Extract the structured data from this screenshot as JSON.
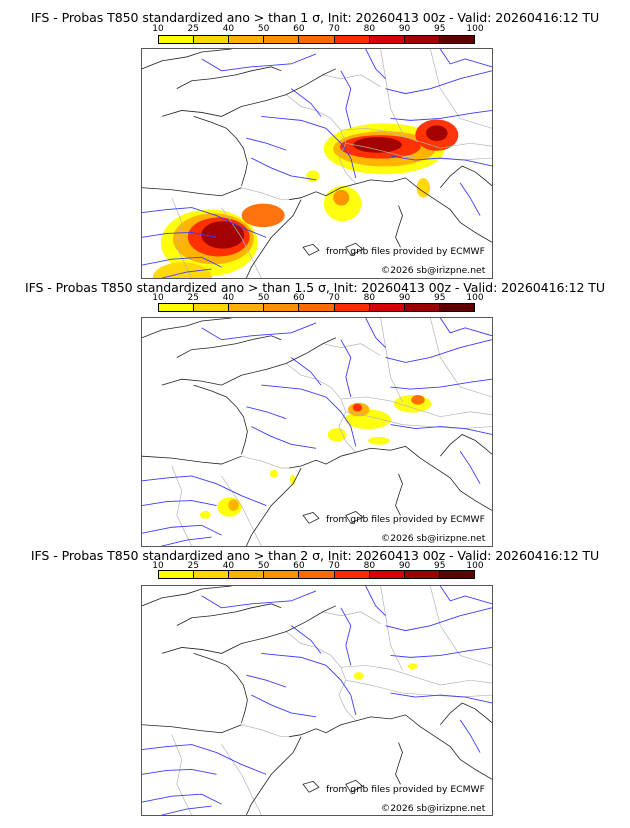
{
  "figure": {
    "credit_source": "from grib files provided by ECMWF",
    "credit_copyright": "©2026 sb@irizpne.net"
  },
  "colorbar": {
    "ticks": [
      "10",
      "25",
      "40",
      "50",
      "60",
      "70",
      "80",
      "90",
      "95",
      "100"
    ],
    "colors": [
      "#ffff00",
      "#ffd700",
      "#ffb000",
      "#ff9000",
      "#ff6a00",
      "#ff2a00",
      "#d80000",
      "#9e0000",
      "#5e0000"
    ]
  },
  "panels": [
    {
      "title": "IFS - Probas T850  standardized ano > than 1 σ, Init: 20260413 00z - Valid: 20260416:12 TU",
      "threshold_sigma": 1,
      "prob_areas": [
        {
          "lon": -4.5,
          "lat": 40.6,
          "rx": 3.6,
          "ry": 1.7,
          "p": 15
        },
        {
          "lon": -4.2,
          "lat": 40.8,
          "rx": 3.0,
          "ry": 1.3,
          "p": 40
        },
        {
          "lon": -3.8,
          "lat": 40.9,
          "rx": 2.3,
          "ry": 1.0,
          "p": 70
        },
        {
          "lon": -3.5,
          "lat": 41.0,
          "rx": 1.6,
          "ry": 0.7,
          "p": 92
        },
        {
          "lon": -0.5,
          "lat": 42.0,
          "rx": 1.6,
          "ry": 0.6,
          "p": 60
        },
        {
          "lon": -6.5,
          "lat": 38.8,
          "rx": 2.2,
          "ry": 0.8,
          "p": 25
        },
        {
          "lon": 5.4,
          "lat": 42.6,
          "rx": 1.4,
          "ry": 0.9,
          "p": 20
        },
        {
          "lon": 5.3,
          "lat": 42.9,
          "rx": 0.6,
          "ry": 0.4,
          "p": 55
        },
        {
          "lon": 8.5,
          "lat": 45.4,
          "rx": 4.5,
          "ry": 1.3,
          "p": 15
        },
        {
          "lon": 8.5,
          "lat": 45.4,
          "rx": 3.8,
          "ry": 0.9,
          "p": 45
        },
        {
          "lon": 8.2,
          "lat": 45.5,
          "rx": 3.0,
          "ry": 0.6,
          "p": 75
        },
        {
          "lon": 8.0,
          "lat": 45.6,
          "rx": 1.8,
          "ry": 0.4,
          "p": 93
        },
        {
          "lon": 12.4,
          "lat": 46.1,
          "rx": 1.6,
          "ry": 0.8,
          "p": 75
        },
        {
          "lon": 12.4,
          "lat": 46.2,
          "rx": 0.8,
          "ry": 0.4,
          "p": 93
        },
        {
          "lon": 11.4,
          "lat": 43.4,
          "rx": 0.5,
          "ry": 0.5,
          "p": 30
        },
        {
          "lon": 3.2,
          "lat": 44.0,
          "rx": 0.5,
          "ry": 0.3,
          "p": 15
        }
      ]
    },
    {
      "title": "IFS - Probas T850  standardized ano > than 1.5 σ, Init: 20260413 00z - Valid: 20260416:12 TU",
      "threshold_sigma": 1.5,
      "prob_areas": [
        {
          "lon": 7.3,
          "lat": 45.3,
          "rx": 1.7,
          "ry": 0.5,
          "p": 15
        },
        {
          "lon": 6.6,
          "lat": 45.8,
          "rx": 0.8,
          "ry": 0.35,
          "p": 45
        },
        {
          "lon": 6.5,
          "lat": 45.9,
          "rx": 0.35,
          "ry": 0.2,
          "p": 75
        },
        {
          "lon": 10.6,
          "lat": 46.1,
          "rx": 1.4,
          "ry": 0.45,
          "p": 20
        },
        {
          "lon": 11.0,
          "lat": 46.3,
          "rx": 0.5,
          "ry": 0.25,
          "p": 65
        },
        {
          "lon": 5.0,
          "lat": 44.5,
          "rx": 0.7,
          "ry": 0.35,
          "p": 15
        },
        {
          "lon": 8.1,
          "lat": 44.2,
          "rx": 0.8,
          "ry": 0.2,
          "p": 15
        },
        {
          "lon": -3.0,
          "lat": 40.8,
          "rx": 0.9,
          "ry": 0.5,
          "p": 15
        },
        {
          "lon": -2.7,
          "lat": 40.9,
          "rx": 0.4,
          "ry": 0.3,
          "p": 40
        },
        {
          "lon": -4.8,
          "lat": 40.4,
          "rx": 0.4,
          "ry": 0.2,
          "p": 20
        },
        {
          "lon": 0.3,
          "lat": 42.5,
          "rx": 0.3,
          "ry": 0.2,
          "p": 12
        },
        {
          "lon": 1.7,
          "lat": 42.2,
          "rx": 0.2,
          "ry": 0.25,
          "p": 12
        }
      ]
    },
    {
      "title": "IFS - Probas T850  standardized ano > than 2 σ, Init: 20260413 00z - Valid: 20260416:12 TU",
      "threshold_sigma": 2,
      "prob_areas": [
        {
          "lon": 6.6,
          "lat": 45.9,
          "rx": 0.35,
          "ry": 0.2,
          "p": 12
        },
        {
          "lon": 10.6,
          "lat": 46.4,
          "rx": 0.35,
          "ry": 0.15,
          "p": 12
        }
      ]
    }
  ]
}
